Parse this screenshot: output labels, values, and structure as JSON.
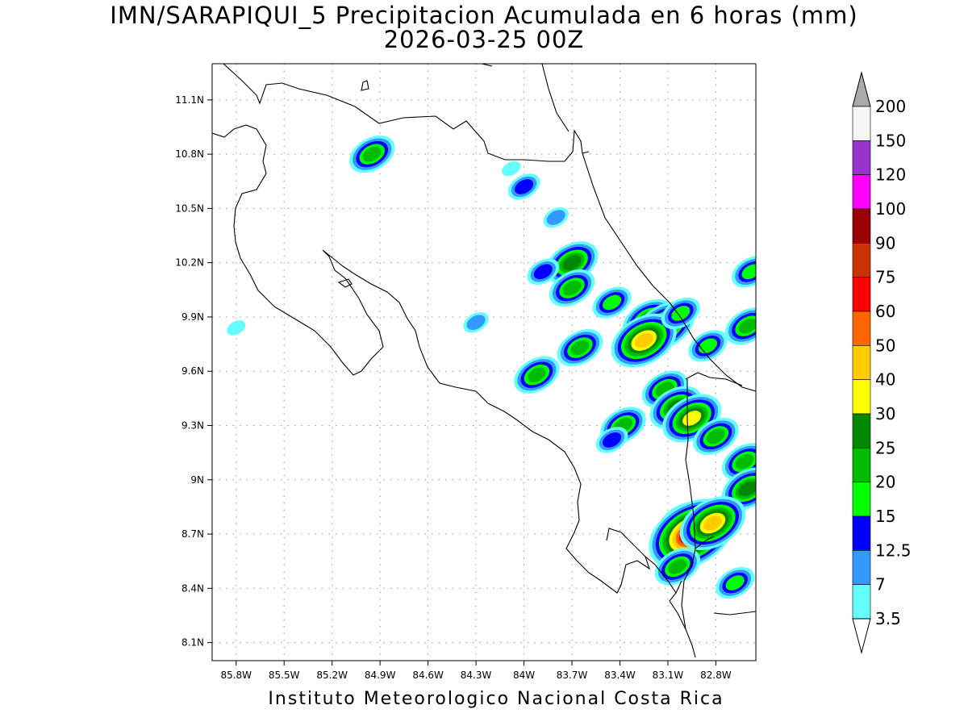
{
  "title": {
    "line1": "IMN/SARAPIQUI_5 Precipitacion Acumulada en 6 horas (mm)",
    "line2": "2026-03-25 00Z"
  },
  "footer": "Instituto Meteorologico Nacional Costa Rica",
  "map": {
    "lon_range": [
      -85.95,
      -82.55
    ],
    "lat_range": [
      8.0,
      11.3
    ],
    "lat_ticks": [
      "11.1N",
      "10.8N",
      "10.5N",
      "10.2N",
      "9.9N",
      "9.6N",
      "9.3N",
      "9N",
      "8.7N",
      "8.4N",
      "8.1N"
    ],
    "lat_values": [
      11.1,
      10.8,
      10.5,
      10.2,
      9.9,
      9.6,
      9.3,
      9.0,
      8.7,
      8.4,
      8.1
    ],
    "lon_ticks": [
      "85.8W",
      "85.5W",
      "85.2W",
      "84.9W",
      "84.6W",
      "84.3W",
      "84W",
      "83.7W",
      "83.4W",
      "83.1W",
      "82.8W"
    ],
    "lon_values": [
      -85.8,
      -85.5,
      -85.2,
      -84.9,
      -84.6,
      -84.3,
      -84.0,
      -83.7,
      -83.4,
      -83.1,
      -82.8
    ],
    "grid": true
  },
  "colorbar": {
    "labels": [
      "200",
      "150",
      "120",
      "100",
      "90",
      "75",
      "60",
      "50",
      "40",
      "30",
      "25",
      "20",
      "15",
      "12.5",
      "7",
      "3.5"
    ],
    "colors": [
      "#f5f5f5",
      "#9a33cc",
      "#ff00ff",
      "#990000",
      "#cc3300",
      "#ff0000",
      "#ff6600",
      "#ffcc00",
      "#ffff00",
      "#008800",
      "#00bb00",
      "#00ff00",
      "#0000ff",
      "#3399ff",
      "#66ffff"
    ],
    "over_color": "#aaaaaa",
    "under_color": "#ffffff"
  },
  "precip_cells": [
    {
      "lon": -84.95,
      "lat": 10.8,
      "level": 20
    },
    {
      "lon": -84.0,
      "lat": 10.62,
      "level": 12.5
    },
    {
      "lon": -84.08,
      "lat": 10.72,
      "level": 3.5
    },
    {
      "lon": -83.8,
      "lat": 10.45,
      "level": 7
    },
    {
      "lon": -83.7,
      "lat": 10.2,
      "level": 25
    },
    {
      "lon": -83.88,
      "lat": 10.15,
      "level": 12.5
    },
    {
      "lon": -83.7,
      "lat": 10.06,
      "level": 20
    },
    {
      "lon": -83.45,
      "lat": 9.98,
      "level": 15
    },
    {
      "lon": -83.22,
      "lat": 9.88,
      "level": 25
    },
    {
      "lon": -83.12,
      "lat": 9.85,
      "level": 30
    },
    {
      "lon": -83.25,
      "lat": 9.77,
      "level": 40
    },
    {
      "lon": -83.02,
      "lat": 9.92,
      "level": 15
    },
    {
      "lon": -83.65,
      "lat": 9.73,
      "level": 20
    },
    {
      "lon": -83.92,
      "lat": 9.58,
      "level": 20
    },
    {
      "lon": -84.3,
      "lat": 9.87,
      "level": 7
    },
    {
      "lon": -83.12,
      "lat": 9.5,
      "level": 20
    },
    {
      "lon": -83.05,
      "lat": 9.4,
      "level": 25
    },
    {
      "lon": -82.95,
      "lat": 9.34,
      "level": 30
    },
    {
      "lon": -82.85,
      "lat": 9.74,
      "level": 15
    },
    {
      "lon": -83.38,
      "lat": 9.3,
      "level": 20
    },
    {
      "lon": -82.8,
      "lat": 9.24,
      "level": 20
    },
    {
      "lon": -82.62,
      "lat": 9.1,
      "level": 20
    },
    {
      "lon": -82.6,
      "lat": 8.95,
      "level": 25
    },
    {
      "lon": -82.6,
      "lat": 9.85,
      "level": 20
    },
    {
      "lon": -82.58,
      "lat": 10.15,
      "level": 15
    },
    {
      "lon": -83.0,
      "lat": 8.76,
      "level": 25
    },
    {
      "lon": -82.95,
      "lat": 8.7,
      "level": 75
    },
    {
      "lon": -82.82,
      "lat": 8.76,
      "level": 40
    },
    {
      "lon": -83.04,
      "lat": 8.52,
      "level": 20
    },
    {
      "lon": -82.68,
      "lat": 8.43,
      "level": 15
    },
    {
      "lon": -85.8,
      "lat": 9.84,
      "level": 3.5
    },
    {
      "lon": -83.45,
      "lat": 9.22,
      "level": 12.5
    }
  ]
}
